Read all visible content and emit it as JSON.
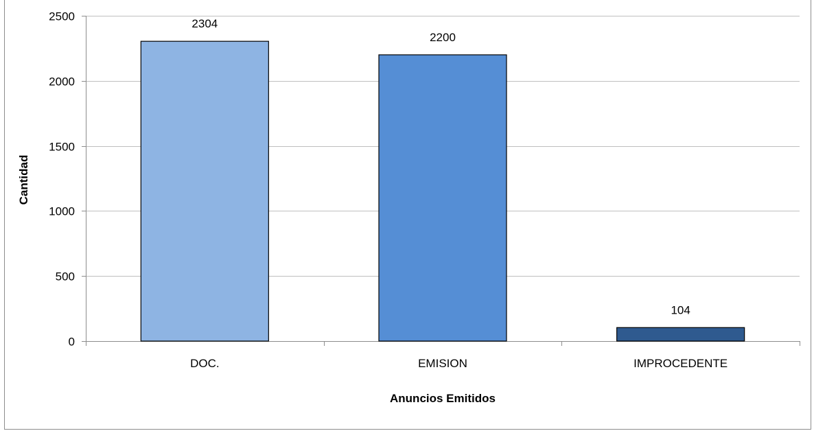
{
  "chart_data": {
    "type": "bar",
    "title": "",
    "xlabel": "Anuncios Emitidos",
    "ylabel": "Cantidad",
    "categories": [
      "DOC.",
      "EMISION",
      "IMPROCEDENTE"
    ],
    "values": [
      2304,
      2200,
      104
    ],
    "data_labels": [
      "2304",
      "2200",
      "104"
    ],
    "colors": [
      "#8eb4e3",
      "#558ed5",
      "#2f5a8f"
    ],
    "ylim": [
      0,
      2500
    ],
    "yticks": [
      0,
      500,
      1000,
      1500,
      2000,
      2500
    ],
    "ytick_labels": [
      "0",
      "500",
      "1000",
      "1500",
      "2000",
      "2500"
    ],
    "grid": true,
    "legend": "none"
  }
}
